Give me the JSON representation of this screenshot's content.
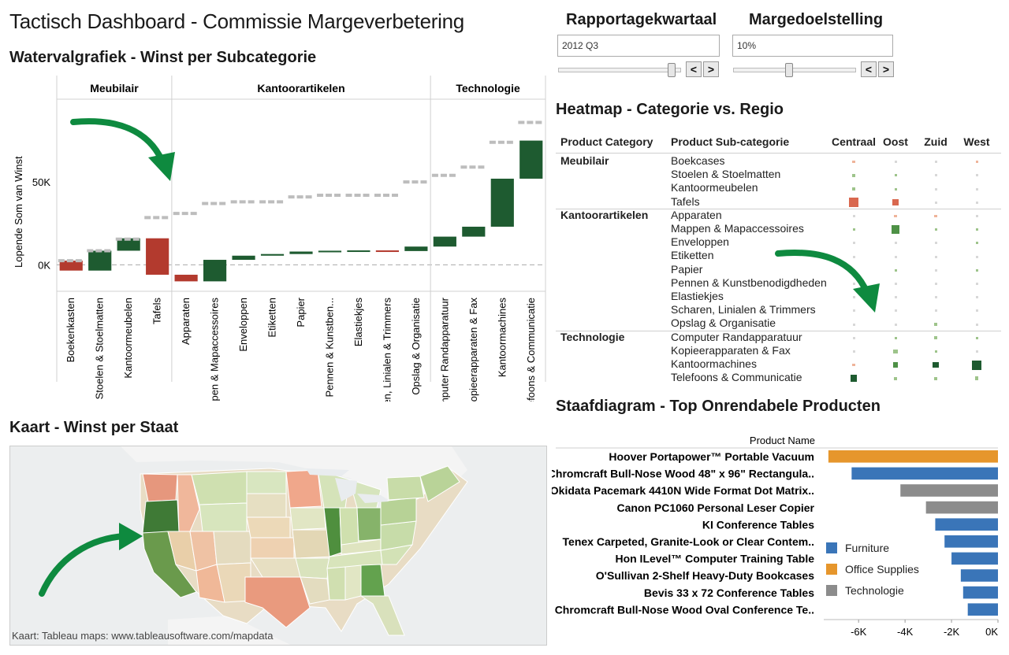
{
  "dashboard": {
    "title": "Tactisch Dashboard - Commissie Margeverbetering"
  },
  "controls": {
    "quarter": {
      "label": "Rapportagekwartaal",
      "value": "2012 Q3",
      "prev": "<",
      "next": ">",
      "slider_level": 0.95
    },
    "margin": {
      "label": "Margedoelstelling",
      "value": "10%",
      "prev": "<",
      "next": ">",
      "slider_level": 0.45
    }
  },
  "waterfall": {
    "title": "Watervalgrafiek - Winst per Subcategorie",
    "ylabel": "Lopende Som van Winst",
    "yticks": [
      "0K",
      "50K"
    ],
    "categories": [
      "Meubilair",
      "Kantoorartikelen",
      "Technologie"
    ],
    "colors": {
      "positive": "#1e5b30",
      "negative": "#b33a2e",
      "total_marker": "#bdbdbd"
    },
    "chart_data": {
      "type": "bar",
      "subtype": "waterfall",
      "y_unit": "K",
      "ylim": [
        -16,
        100
      ],
      "groups": [
        {
          "name": "Meubilair",
          "items": [
            {
              "label": "Boekenkasten",
              "start": 2.5,
              "end": -3.5
            },
            {
              "label": "Stoelen & Stoelmatten",
              "start": -3.5,
              "end": 8.5
            },
            {
              "label": "Kantoormeubelen",
              "start": 8.5,
              "end": 16
            },
            {
              "label": "Tafels",
              "start": 16,
              "end": -6
            }
          ]
        },
        {
          "name": "Kantoorartikelen",
          "items": [
            {
              "label": "Apparaten",
              "start": -6,
              "end": -10
            },
            {
              "label": "Mappen & Mappen & Mapaccessoires",
              "start": -10,
              "end": 3
            },
            {
              "label": "Enveloppen",
              "start": 3,
              "end": 5.5
            },
            {
              "label": "Etiketten",
              "start": 5.5,
              "end": 6.5
            },
            {
              "label": "Papier",
              "start": 6.5,
              "end": 8
            },
            {
              "label": "Pennen & Kunstben...",
              "start": 8,
              "end": 8.5
            },
            {
              "label": "Elastiekjes",
              "start": 8.5,
              "end": 8.7
            },
            {
              "label": "Scharen, Linialen & Trimmers",
              "start": 8.7,
              "end": 8.3
            },
            {
              "label": "Opslag & Organisatie",
              "start": 8.3,
              "end": 11
            }
          ]
        },
        {
          "name": "Technologie",
          "items": [
            {
              "label": "Computer Randapparatuur",
              "start": 11,
              "end": 17
            },
            {
              "label": "Kopieerapparaten & Fax",
              "start": 17,
              "end": 23
            },
            {
              "label": "Kantoormachines",
              "start": 23,
              "end": 52
            },
            {
              "label": "Telefoons & Communicatie",
              "start": 52,
              "end": 75
            }
          ]
        }
      ],
      "running_totals": [
        2.5,
        8.5,
        15.5,
        28.5,
        31,
        37,
        38,
        38,
        41,
        42,
        42,
        42,
        50,
        54,
        59,
        74,
        86
      ]
    }
  },
  "heatmap": {
    "title": "Heatmap - Categorie vs. Regio",
    "headers": {
      "category": "Product Category",
      "subcategory": "Product Sub-categorie",
      "regions": [
        "Centraal",
        "Oost",
        "Zuid",
        "West"
      ]
    },
    "groups": [
      {
        "category": "Meubilair",
        "rows": [
          {
            "name": "Boekcases",
            "cells": [
              {
                "v": -1,
                "s": 0.2
              },
              {
                "v": 0,
                "s": 0.1
              },
              {
                "v": 0,
                "s": 0.05
              },
              {
                "v": -1,
                "s": 0.1
              }
            ]
          },
          {
            "name": "Stoelen & Stoelmatten",
            "cells": [
              {
                "v": 1,
                "s": 0.25
              },
              {
                "v": 1,
                "s": 0.1
              },
              {
                "v": 0,
                "s": 0.05
              },
              {
                "v": 0,
                "s": 0.05
              }
            ]
          },
          {
            "name": "Kantoormeubelen",
            "cells": [
              {
                "v": 1,
                "s": 0.3
              },
              {
                "v": 1,
                "s": 0.1
              },
              {
                "v": 0,
                "s": 0.05
              },
              {
                "v": 0,
                "s": 0.05
              }
            ]
          },
          {
            "name": "Tafels",
            "cells": [
              {
                "v": -2,
                "s": 0.75
              },
              {
                "v": -2,
                "s": 0.5
              },
              {
                "v": 0,
                "s": 0.1
              },
              {
                "v": 0,
                "s": 0.1
              }
            ]
          }
        ]
      },
      {
        "category": "Kantoorartikelen",
        "rows": [
          {
            "name": "Apparaten",
            "cells": [
              {
                "v": 0,
                "s": 0.1
              },
              {
                "v": -1,
                "s": 0.2
              },
              {
                "v": -1,
                "s": 0.2
              },
              {
                "v": 0,
                "s": 0.1
              }
            ]
          },
          {
            "name": "Mappen & Mapaccessoires",
            "cells": [
              {
                "v": 1,
                "s": 0.15
              },
              {
                "v": 2,
                "s": 0.65
              },
              {
                "v": 1,
                "s": 0.15
              },
              {
                "v": 1,
                "s": 0.15
              }
            ]
          },
          {
            "name": "Enveloppen",
            "cells": [
              {
                "v": 0,
                "s": 0.05
              },
              {
                "v": 0,
                "s": 0.05
              },
              {
                "v": 0,
                "s": 0.05
              },
              {
                "v": 1,
                "s": 0.15
              }
            ]
          },
          {
            "name": "Etiketten",
            "cells": [
              {
                "v": 0,
                "s": 0.05
              },
              {
                "v": 0,
                "s": 0.05
              },
              {
                "v": 0,
                "s": 0.05
              },
              {
                "v": 0,
                "s": 0.05
              }
            ]
          },
          {
            "name": "Papier",
            "cells": [
              {
                "v": 0,
                "s": 0.05
              },
              {
                "v": 1,
                "s": 0.1
              },
              {
                "v": 0,
                "s": 0.05
              },
              {
                "v": 1,
                "s": 0.1
              }
            ]
          },
          {
            "name": "Pennen & Kunstbenodigdheden",
            "cells": [
              {
                "v": 0,
                "s": 0.05
              },
              {
                "v": 0,
                "s": 0.05
              },
              {
                "v": 0,
                "s": 0.05
              },
              {
                "v": 0,
                "s": 0.05
              }
            ]
          },
          {
            "name": "Elastiekjes",
            "cells": [
              {
                "v": 0,
                "s": 0.05
              },
              {
                "v": 0,
                "s": 0.05
              },
              {
                "v": 0,
                "s": 0.05
              },
              {
                "v": 0,
                "s": 0.05
              }
            ]
          },
          {
            "name": "Scharen, Linialen & Trimmers",
            "cells": [
              {
                "v": 0,
                "s": 0.05
              },
              {
                "v": 0,
                "s": 0.05
              },
              {
                "v": 0,
                "s": 0.05
              },
              {
                "v": 0,
                "s": 0.05
              }
            ]
          },
          {
            "name": "Opslag & Organisatie",
            "cells": [
              {
                "v": 0,
                "s": 0.1
              },
              {
                "v": 0,
                "s": 0.1
              },
              {
                "v": 1,
                "s": 0.2
              },
              {
                "v": 0,
                "s": 0.05
              }
            ]
          }
        ]
      },
      {
        "category": "Technologie",
        "rows": [
          {
            "name": "Computer Randapparatuur",
            "cells": [
              {
                "v": 0,
                "s": 0.1
              },
              {
                "v": 1,
                "s": 0.15
              },
              {
                "v": 1,
                "s": 0.25
              },
              {
                "v": 1,
                "s": 0.15
              }
            ]
          },
          {
            "name": "Kopieerapparaten & Fax",
            "cells": [
              {
                "v": 0,
                "s": 0.05
              },
              {
                "v": 1,
                "s": 0.35
              },
              {
                "v": 1,
                "s": 0.1
              },
              {
                "v": 0,
                "s": 0.05
              }
            ]
          },
          {
            "name": "Kantoormachines",
            "cells": [
              {
                "v": -1,
                "s": 0.2
              },
              {
                "v": 2,
                "s": 0.4
              },
              {
                "v": 3,
                "s": 0.45
              },
              {
                "v": 3,
                "s": 0.75
              }
            ]
          },
          {
            "name": "Telefoons & Communicatie",
            "cells": [
              {
                "v": 3,
                "s": 0.55
              },
              {
                "v": 1,
                "s": 0.25
              },
              {
                "v": 1,
                "s": 0.25
              },
              {
                "v": 1,
                "s": 0.3
              }
            ]
          }
        ]
      }
    ]
  },
  "map": {
    "title": "Kaart - Winst per Staat",
    "credit": "Kaart: Tableau maps: www.tableausoftware.com/mapdata"
  },
  "bar_chart": {
    "title": "Staafdiagram - Top Onrendabele Producten",
    "column_header": "Product Name",
    "x_ticks": [
      "-6K",
      "-4K",
      "-2K",
      "0K"
    ],
    "legend": [
      {
        "name": "Furniture",
        "color": "#3a75b8"
      },
      {
        "name": "Office Supplies",
        "color": "#e6962c"
      },
      {
        "name": "Technologie",
        "color": "#8c8c8c"
      }
    ],
    "chart_data": {
      "type": "bar",
      "orientation": "horizontal",
      "xlim": [
        -7.5,
        0
      ],
      "x_unit": "K",
      "categories": [
        "Hoover Portapower™ Portable Vacuum",
        "Chromcraft Bull-Nose Wood 48\" x 96\" Rectangula..",
        "Okidata Pacemark 4410N Wide Format Dot Matrix..",
        "Canon PC1060 Personal Leser Copier",
        "KI Conference Tables",
        "Tenex Carpeted, Granite-Look or Clear Contem..",
        "Hon ILevel™ Computer Training Table",
        "O'Sullivan 2-Shelf Heavy-Duty Bookcases",
        "Bevis 33 x 72 Conference Tables",
        "Chromcraft Bull-Nose Wood Oval Conference Te.."
      ],
      "values": [
        -7.3,
        -6.3,
        -4.2,
        -3.1,
        -2.7,
        -2.3,
        -2.0,
        -1.6,
        -1.5,
        -1.3
      ],
      "groups": [
        "Office Supplies",
        "Furniture",
        "Technologie",
        "Technologie",
        "Furniture",
        "Furniture",
        "Furniture",
        "Furniture",
        "Furniture",
        "Furniture"
      ]
    }
  }
}
